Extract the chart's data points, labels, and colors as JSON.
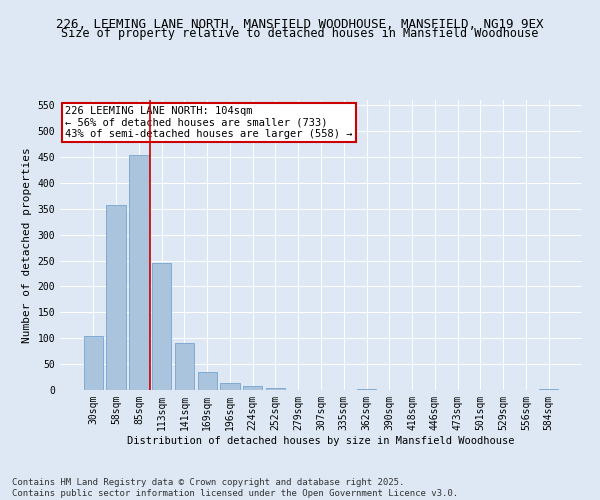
{
  "title": "226, LEEMING LANE NORTH, MANSFIELD WOODHOUSE, MANSFIELD, NG19 9EX",
  "subtitle": "Size of property relative to detached houses in Mansfield Woodhouse",
  "xlabel": "Distribution of detached houses by size in Mansfield Woodhouse",
  "ylabel": "Number of detached properties",
  "categories": [
    "30sqm",
    "58sqm",
    "85sqm",
    "113sqm",
    "141sqm",
    "169sqm",
    "196sqm",
    "224sqm",
    "252sqm",
    "279sqm",
    "307sqm",
    "335sqm",
    "362sqm",
    "390sqm",
    "418sqm",
    "446sqm",
    "473sqm",
    "501sqm",
    "529sqm",
    "556sqm",
    "584sqm"
  ],
  "values": [
    104,
    357,
    454,
    246,
    90,
    35,
    14,
    7,
    3,
    0,
    0,
    0,
    2,
    0,
    0,
    0,
    0,
    0,
    0,
    0,
    2
  ],
  "bar_color": "#aac4de",
  "bar_edge_color": "#6699cc",
  "red_line_color": "#cc0000",
  "red_line_x": 2.5,
  "annotation_text": "226 LEEMING LANE NORTH: 104sqm\n← 56% of detached houses are smaller (733)\n43% of semi-detached houses are larger (558) →",
  "annotation_box_color": "#ffffff",
  "annotation_box_edge_color": "#cc0000",
  "ylim": [
    0,
    560
  ],
  "yticks": [
    0,
    50,
    100,
    150,
    200,
    250,
    300,
    350,
    400,
    450,
    500,
    550
  ],
  "bg_color": "#dde8f4",
  "plot_bg_color": "#dde8f4",
  "footer_text": "Contains HM Land Registry data © Crown copyright and database right 2025.\nContains public sector information licensed under the Open Government Licence v3.0.",
  "title_fontsize": 9,
  "annotation_fontsize": 7.5,
  "footer_fontsize": 6.5,
  "axis_fontsize": 7.5,
  "tick_fontsize": 7,
  "ylabel_fontsize": 8
}
